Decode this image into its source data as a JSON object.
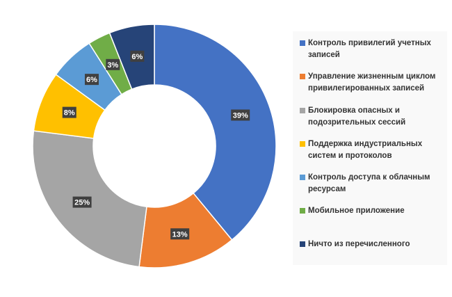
{
  "chart_data": {
    "type": "pie",
    "variant": "donut",
    "categories": [
      "Контроль привилегий учетных записей",
      "Управление жизненным циклом привилегированных записей",
      "Блокировка опасных и подозрительных сессий",
      "Поддержка индустриальных систем и протоколов",
      "Контроль доступа к облачным ресурсам",
      "Мобильное приложение",
      "Ничто из перечисленного"
    ],
    "values": [
      39,
      13,
      25,
      8,
      6,
      3,
      6
    ],
    "labels": [
      "39%",
      "13%",
      "25%",
      "8%",
      "6%",
      "3%",
      "6%"
    ],
    "colors": [
      "#4472c4",
      "#ed7d31",
      "#a5a5a5",
      "#ffc000",
      "#5b9bd5",
      "#70ad47",
      "#264478"
    ],
    "legend": "right"
  }
}
